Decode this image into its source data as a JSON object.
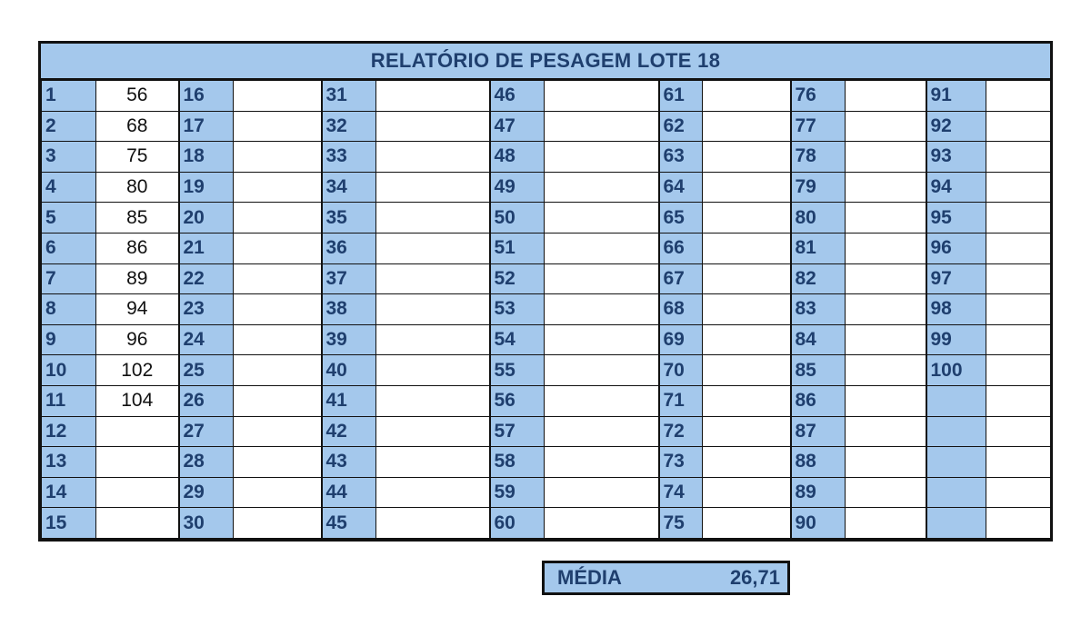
{
  "title": "RELATÓRIO DE PESAGEM LOTE 18",
  "media": {
    "label": "MÉDIA",
    "value": "26,71"
  },
  "colors": {
    "header_blue": "#a4c8ec",
    "text_blue": "#1f3f6e"
  },
  "columns": [
    {
      "numbers": [
        "1",
        "2",
        "3",
        "4",
        "5",
        "6",
        "7",
        "8",
        "9",
        "10",
        "11",
        "12",
        "13",
        "14",
        "15"
      ],
      "values": [
        "56",
        "68",
        "75",
        "80",
        "85",
        "86",
        "89",
        "94",
        "96",
        "102",
        "104",
        "",
        "",
        "",
        ""
      ]
    },
    {
      "numbers": [
        "16",
        "17",
        "18",
        "19",
        "20",
        "21",
        "22",
        "23",
        "24",
        "25",
        "26",
        "27",
        "28",
        "29",
        "30"
      ],
      "values": [
        "",
        "",
        "",
        "",
        "",
        "",
        "",
        "",
        "",
        "",
        "",
        "",
        "",
        "",
        ""
      ]
    },
    {
      "numbers": [
        "31",
        "32",
        "33",
        "34",
        "35",
        "36",
        "37",
        "38",
        "39",
        "40",
        "41",
        "42",
        "43",
        "44",
        "45"
      ],
      "values": [
        "",
        "",
        "",
        "",
        "",
        "",
        "",
        "",
        "",
        "",
        "",
        "",
        "",
        "",
        ""
      ]
    },
    {
      "numbers": [
        "46",
        "47",
        "48",
        "49",
        "50",
        "51",
        "52",
        "53",
        "54",
        "55",
        "56",
        "57",
        "58",
        "59",
        "60"
      ],
      "values": [
        "",
        "",
        "",
        "",
        "",
        "",
        "",
        "",
        "",
        "",
        "",
        "",
        "",
        "",
        ""
      ]
    },
    {
      "numbers": [
        "61",
        "62",
        "63",
        "64",
        "65",
        "66",
        "67",
        "68",
        "69",
        "70",
        "71",
        "72",
        "73",
        "74",
        "75"
      ],
      "values": [
        "",
        "",
        "",
        "",
        "",
        "",
        "",
        "",
        "",
        "",
        "",
        "",
        "",
        "",
        ""
      ]
    },
    {
      "numbers": [
        "76",
        "77",
        "78",
        "79",
        "80",
        "81",
        "82",
        "83",
        "84",
        "85",
        "86",
        "87",
        "88",
        "89",
        "90"
      ],
      "values": [
        "",
        "",
        "",
        "",
        "",
        "",
        "",
        "",
        "",
        "",
        "",
        "",
        "",
        "",
        ""
      ]
    },
    {
      "numbers": [
        "91",
        "92",
        "93",
        "94",
        "95",
        "96",
        "97",
        "98",
        "99",
        "100",
        "",
        "",
        "",
        "",
        ""
      ],
      "values": [
        "",
        "",
        "",
        "",
        "",
        "",
        "",
        "",
        "",
        "",
        "",
        "",
        "",
        "",
        ""
      ]
    }
  ]
}
